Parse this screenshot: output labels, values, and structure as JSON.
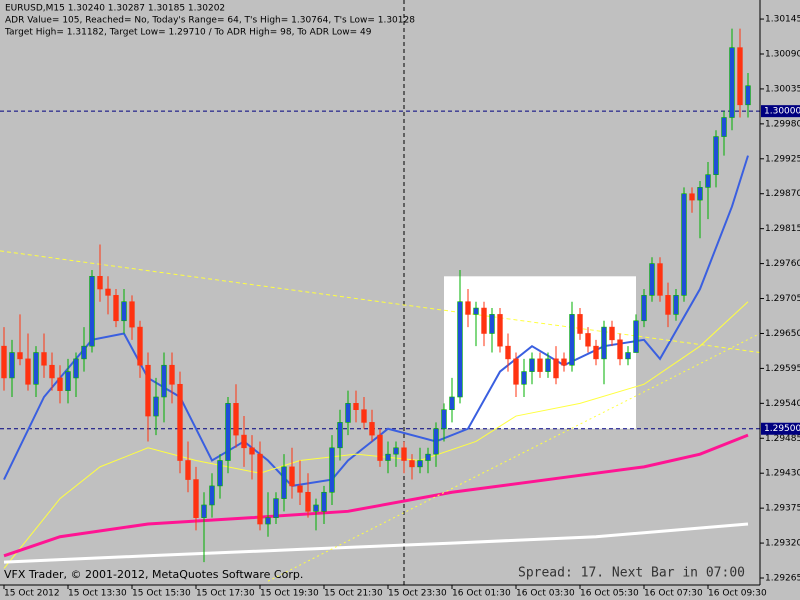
{
  "chart_data": {
    "type": "candlestick",
    "header": [
      "EURUSD,M15  1.30240 1.30287 1.30185 1.30202",
      "ADR Value= 105, Reached= No, Today's Range= 64, T's High= 1.30764, T's Low= 1.30128",
      "Target High= 1.31182, Target Low= 1.29710 / To ADR High= 98, To ADR Low= 49"
    ],
    "footer": "VFX Trader, © 2001-2012, MetaQuotes Software Corp.",
    "status": "Spread: 17. Next Bar in 07:00",
    "background": "#c0c0c0",
    "up_color": "#1e4fd8",
    "up_wick": "#00b000",
    "down_color": "#ff3311",
    "down_wick": "#ff3311",
    "xlim": [
      -0.5,
      94.5
    ],
    "ylim": [
      1.29254,
      1.30175
    ],
    "xticks": [
      {
        "value": 0,
        "label": "15 Oct 2012"
      },
      {
        "value": 8,
        "label": "15 Oct 13:30"
      },
      {
        "value": 16,
        "label": "15 Oct 15:30"
      },
      {
        "value": 24,
        "label": "15 Oct 17:30"
      },
      {
        "value": 32,
        "label": "15 Oct 19:30"
      },
      {
        "value": 40,
        "label": "15 Oct 21:30"
      },
      {
        "value": 48,
        "label": "15 Oct 23:30"
      },
      {
        "value": 56,
        "label": "16 Oct 01:30"
      },
      {
        "value": 64,
        "label": "16 Oct 03:30"
      },
      {
        "value": 72,
        "label": "16 Oct 05:30"
      },
      {
        "value": 80,
        "label": "16 Oct 07:30"
      },
      {
        "value": 88,
        "label": "16 Oct 09:30"
      }
    ],
    "yticks": [
      {
        "value": 1.30145,
        "label": "1.30145"
      },
      {
        "value": 1.3009,
        "label": "1.30090"
      },
      {
        "value": 1.30035,
        "label": "1.30035"
      },
      {
        "value": 1.2998,
        "label": "1.29980"
      },
      {
        "value": 1.29925,
        "label": "1.29925"
      },
      {
        "value": 1.2987,
        "label": "1.29870"
      },
      {
        "value": 1.29815,
        "label": "1.29815"
      },
      {
        "value": 1.2976,
        "label": "1.29760"
      },
      {
        "value": 1.29705,
        "label": "1.29705"
      },
      {
        "value": 1.2965,
        "label": "1.29650"
      },
      {
        "value": 1.29595,
        "label": "1.29595"
      },
      {
        "value": 1.2954,
        "label": "1.29540"
      },
      {
        "value": 1.29485,
        "label": "1.29485"
      },
      {
        "value": 1.2943,
        "label": "1.29430"
      },
      {
        "value": 1.29375,
        "label": "1.29375"
      },
      {
        "value": 1.2932,
        "label": "1.29320"
      },
      {
        "value": 1.29265,
        "label": "1.29265"
      }
    ],
    "levels": [
      {
        "value": 1.3,
        "label": "1.30000"
      },
      {
        "value": 1.295,
        "label": "1.29500"
      }
    ],
    "vline": 50,
    "zone": {
      "x": [
        55,
        79
      ],
      "y": [
        1.2974,
        1.295
      ],
      "color": "#ffffff"
    },
    "ohlc": [
      [
        1.2963,
        1.2966,
        1.2956,
        1.2958
      ],
      [
        1.2958,
        1.2964,
        1.2955,
        1.2962
      ],
      [
        1.2962,
        1.2968,
        1.296,
        1.2961
      ],
      [
        1.2961,
        1.2965,
        1.2956,
        1.2957
      ],
      [
        1.2957,
        1.2963,
        1.2955,
        1.2962
      ],
      [
        1.2962,
        1.2965,
        1.2958,
        1.296
      ],
      [
        1.296,
        1.2962,
        1.2956,
        1.2958
      ],
      [
        1.2958,
        1.296,
        1.2954,
        1.2956
      ],
      [
        1.2956,
        1.2961,
        1.2954,
        1.2959
      ],
      [
        1.2958,
        1.2962,
        1.2955,
        1.2961
      ],
      [
        1.2961,
        1.2966,
        1.2959,
        1.2963
      ],
      [
        1.2963,
        1.2975,
        1.2962,
        1.2974
      ],
      [
        1.2974,
        1.2979,
        1.297,
        1.2972
      ],
      [
        1.2972,
        1.2974,
        1.2968,
        1.2971
      ],
      [
        1.2971,
        1.2972,
        1.2966,
        1.2967
      ],
      [
        1.2967,
        1.2972,
        1.2965,
        1.297
      ],
      [
        1.297,
        1.2971,
        1.2964,
        1.2966
      ],
      [
        1.2966,
        1.2967,
        1.2958,
        1.296
      ],
      [
        1.296,
        1.2962,
        1.2948,
        1.2952
      ],
      [
        1.2952,
        1.2958,
        1.2949,
        1.2955
      ],
      [
        1.2955,
        1.2962,
        1.2951,
        1.296
      ],
      [
        1.296,
        1.2962,
        1.2954,
        1.2957
      ],
      [
        1.2957,
        1.2959,
        1.2943,
        1.2945
      ],
      [
        1.2945,
        1.2948,
        1.294,
        1.2942
      ],
      [
        1.2942,
        1.2944,
        1.2934,
        1.2936
      ],
      [
        1.2936,
        1.294,
        1.2929,
        1.2938
      ],
      [
        1.2938,
        1.2943,
        1.2936,
        1.2941
      ],
      [
        1.2941,
        1.2946,
        1.2939,
        1.2945
      ],
      [
        1.2945,
        1.2955,
        1.2943,
        1.2954
      ],
      [
        1.2954,
        1.2957,
        1.2947,
        1.2949
      ],
      [
        1.2949,
        1.2952,
        1.2944,
        1.2947
      ],
      [
        1.2947,
        1.2949,
        1.2942,
        1.2946
      ],
      [
        1.2946,
        1.2948,
        1.2934,
        1.2935
      ],
      [
        1.2935,
        1.294,
        1.2933,
        1.2936
      ],
      [
        1.2936,
        1.294,
        1.2935,
        1.2939
      ],
      [
        1.2939,
        1.2946,
        1.2937,
        1.2944
      ],
      [
        1.2944,
        1.2947,
        1.2939,
        1.2941
      ],
      [
        1.2941,
        1.2945,
        1.2938,
        1.294
      ],
      [
        1.294,
        1.2943,
        1.2936,
        1.2937
      ],
      [
        1.2937,
        1.2939,
        1.2934,
        1.2938
      ],
      [
        1.2937,
        1.2941,
        1.2935,
        1.294
      ],
      [
        1.294,
        1.2949,
        1.2938,
        1.2947
      ],
      [
        1.2947,
        1.2953,
        1.2945,
        1.2951
      ],
      [
        1.2951,
        1.2956,
        1.2949,
        1.2954
      ],
      [
        1.2954,
        1.2956,
        1.2951,
        1.2953
      ],
      [
        1.2953,
        1.2955,
        1.295,
        1.2951
      ],
      [
        1.2951,
        1.2953,
        1.2948,
        1.2949
      ],
      [
        1.2949,
        1.295,
        1.2944,
        1.2945
      ],
      [
        1.2945,
        1.2948,
        1.2943,
        1.2946
      ],
      [
        1.2946,
        1.2948,
        1.2944,
        1.2947
      ],
      [
        1.2947,
        1.2948,
        1.2943,
        1.2945
      ],
      [
        1.2945,
        1.2946,
        1.2942,
        1.2944
      ],
      [
        1.2944,
        1.2947,
        1.2943,
        1.2945
      ],
      [
        1.2945,
        1.2947,
        1.2943,
        1.2946
      ],
      [
        1.2946,
        1.2951,
        1.2944,
        1.295
      ],
      [
        1.295,
        1.2954,
        1.2948,
        1.2953
      ],
      [
        1.2953,
        1.2958,
        1.2951,
        1.2955
      ],
      [
        1.2955,
        1.2975,
        1.2954,
        1.297
      ],
      [
        1.297,
        1.2972,
        1.2966,
        1.2968
      ],
      [
        1.2968,
        1.297,
        1.2963,
        1.2969
      ],
      [
        1.2969,
        1.297,
        1.2963,
        1.2965
      ],
      [
        1.2965,
        1.2969,
        1.2962,
        1.2968
      ],
      [
        1.2968,
        1.2969,
        1.2962,
        1.2963
      ],
      [
        1.2963,
        1.2965,
        1.2959,
        1.2961
      ],
      [
        1.2961,
        1.2962,
        1.2955,
        1.2957
      ],
      [
        1.2957,
        1.2961,
        1.2955,
        1.2959
      ],
      [
        1.2959,
        1.2962,
        1.2957,
        1.2961
      ],
      [
        1.2961,
        1.2962,
        1.2958,
        1.2959
      ],
      [
        1.2959,
        1.2962,
        1.2958,
        1.2961
      ],
      [
        1.2961,
        1.2963,
        1.2957,
        1.2958
      ],
      [
        1.2961,
        1.2962,
        1.2959,
        1.296
      ],
      [
        1.296,
        1.297,
        1.2959,
        1.2968
      ],
      [
        1.2968,
        1.2969,
        1.2964,
        1.2965
      ],
      [
        1.2965,
        1.2966,
        1.2962,
        1.2963
      ],
      [
        1.2963,
        1.2964,
        1.296,
        1.2961
      ],
      [
        1.2961,
        1.2967,
        1.2957,
        1.2966
      ],
      [
        1.2966,
        1.2967,
        1.2963,
        1.2964
      ],
      [
        1.2964,
        1.2965,
        1.296,
        1.2961
      ],
      [
        1.2961,
        1.2963,
        1.296,
        1.2962
      ],
      [
        1.2962,
        1.2968,
        1.2962,
        1.2967
      ],
      [
        1.2967,
        1.2972,
        1.2966,
        1.2971
      ],
      [
        1.2971,
        1.2977,
        1.297,
        1.2976
      ],
      [
        1.2976,
        1.2977,
        1.297,
        1.2971
      ],
      [
        1.2971,
        1.2973,
        1.2966,
        1.2968
      ],
      [
        1.2968,
        1.2972,
        1.2967,
        1.2971
      ],
      [
        1.2971,
        1.2988,
        1.297,
        1.2987
      ],
      [
        1.2987,
        1.2988,
        1.2984,
        1.2986
      ],
      [
        1.2986,
        1.2989,
        1.298,
        1.2988
      ],
      [
        1.2988,
        1.2992,
        1.2983,
        1.299
      ],
      [
        1.299,
        1.2997,
        1.2988,
        1.2996
      ],
      [
        1.2996,
        1.3,
        1.2993,
        1.2999
      ],
      [
        1.2999,
        1.3013,
        1.2997,
        1.301
      ],
      [
        1.301,
        1.3013,
        1.2999,
        1.3001
      ],
      [
        1.3001,
        1.3006,
        1.2999,
        1.3004
      ]
    ],
    "ma": [
      {
        "color": "#3a5fe0",
        "width": 2,
        "x": [
          0,
          5,
          11,
          15,
          18,
          22,
          26,
          30,
          33,
          36,
          41,
          43,
          48,
          54,
          58,
          62,
          66,
          70,
          75,
          80,
          82,
          87,
          91,
          93
        ],
        "values": [
          1.2942,
          1.2955,
          1.2964,
          1.2965,
          1.2958,
          1.2955,
          1.2945,
          1.2948,
          1.2945,
          1.2941,
          1.2942,
          1.2945,
          1.295,
          1.2948,
          1.295,
          1.2959,
          1.2963,
          1.296,
          1.2963,
          1.2964,
          1.2961,
          1.2972,
          1.2985,
          1.2993
        ]
      },
      {
        "color": "#ffff40",
        "width": 1,
        "x": [
          0,
          7,
          12,
          18,
          24,
          32,
          37,
          44,
          52,
          59,
          64,
          72,
          80,
          87,
          93
        ],
        "values": [
          1.2928,
          1.2939,
          1.2944,
          1.2947,
          1.2945,
          1.2943,
          1.2945,
          1.2946,
          1.2945,
          1.2948,
          1.2952,
          1.2954,
          1.2957,
          1.2963,
          1.297
        ]
      },
      {
        "color": "#ff1493",
        "width": 3,
        "x": [
          0,
          7,
          18,
          31,
          43,
          56,
          68,
          80,
          87,
          93
        ],
        "values": [
          1.293,
          1.2933,
          1.2935,
          1.2936,
          1.2937,
          1.294,
          1.2942,
          1.2944,
          1.2946,
          1.2949
        ]
      },
      {
        "color": "#ffffff",
        "width": 3,
        "x": [
          0,
          18,
          37,
          56,
          74,
          93
        ],
        "values": [
          1.2929,
          1.293,
          1.2931,
          1.2932,
          1.2933,
          1.2935
        ]
      }
    ],
    "trendlines": [
      {
        "color": "#ffff40",
        "dash": "4 3",
        "x": [
          -0.5,
          94.5
        ],
        "values": [
          1.2978,
          1.2962
        ]
      },
      {
        "color": "#ffff40",
        "dash": "2 3",
        "x": [
          33,
          94.5
        ],
        "values": [
          1.2926,
          1.2965
        ]
      }
    ]
  }
}
